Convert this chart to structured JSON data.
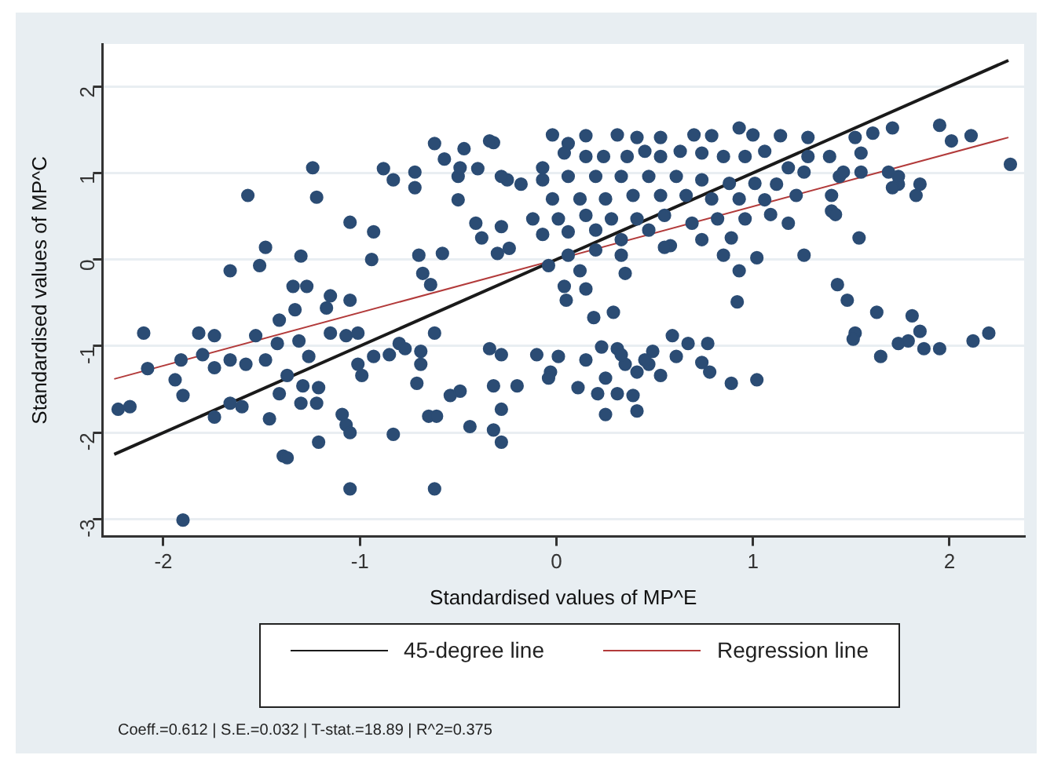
{
  "chart_data": {
    "type": "scatter",
    "xlabel": "Standardised values of MP^E",
    "ylabel": "Standardised values of MP^C",
    "xlim": [
      -2.31,
      2.38
    ],
    "ylim": [
      -3.2,
      2.49
    ],
    "xticks": [
      -2,
      -1,
      0,
      1,
      2
    ],
    "yticks": [
      -3,
      -2,
      -1,
      0,
      1,
      2
    ],
    "grid": "y",
    "legend": "bottom",
    "series": [
      {
        "marker": "circle",
        "color": "#2b4c74",
        "x": [
          -1.57,
          -1.24,
          -1.22,
          -1.66,
          -1.51,
          -1.48,
          -1.3,
          -1.34,
          -1.27,
          -1.15,
          -1.05,
          -1.05,
          -0.93,
          -0.94,
          -0.88,
          -0.83,
          -0.72,
          -0.72,
          -0.7,
          -0.68,
          -0.64,
          -0.62,
          -0.57,
          -0.5,
          -0.47,
          -0.49,
          -0.4,
          -0.5,
          -0.32,
          -0.25,
          -0.41,
          -0.38,
          -0.28,
          -0.3,
          -0.24,
          -0.58,
          -2.1,
          -2.08,
          -2.23,
          -2.17,
          -1.94,
          -1.9,
          -1.82,
          -1.74,
          -1.91,
          -1.8,
          -1.74,
          -1.66,
          -1.58,
          -1.53,
          -1.48,
          -1.42,
          -1.41,
          -1.33,
          -1.17,
          -1.31,
          -1.26,
          -1.37,
          -1.29,
          -1.21,
          -1.41,
          -1.3,
          -1.22,
          -1.46,
          -1.66,
          -1.74,
          -1.6,
          -1.15,
          -1.07,
          -1.01,
          -1.01,
          -0.99,
          -1.09,
          -1.07,
          -1.05,
          -1.21,
          -1.39,
          -1.37,
          -1.05,
          -0.83,
          -0.93,
          -0.85,
          -0.8,
          -0.77,
          -0.62,
          -0.69,
          -0.69,
          -0.71,
          -0.65,
          -0.61,
          -0.54,
          -0.49,
          -0.62,
          -0.44,
          -0.34,
          -0.28,
          -0.32,
          -0.28,
          -0.32,
          -0.28,
          -0.2,
          -1.9,
          -0.02,
          0.06,
          0.15,
          0.31,
          0.41,
          0.53,
          0.7,
          0.79,
          0.93,
          1.0,
          1.14,
          1.28,
          1.52,
          1.61,
          1.71,
          1.95,
          2.01,
          2.11,
          2.31,
          1.39,
          1.55,
          1.69,
          1.74,
          1.83,
          1.85,
          1.55,
          1.44,
          1.4,
          1.4,
          1.22,
          1.26,
          1.28,
          1.18,
          1.06,
          0.96,
          0.85,
          0.74,
          0.63,
          0.53,
          0.45,
          0.36,
          0.24,
          0.15,
          0.04,
          -0.07,
          -0.18,
          -0.28,
          -0.34,
          -0.07,
          0.06,
          0.2,
          0.33,
          0.47,
          0.61,
          0.74,
          0.88,
          1.01,
          1.12,
          -0.02,
          0.12,
          0.25,
          0.39,
          0.53,
          0.66,
          0.79,
          0.93,
          1.06,
          -0.12,
          0.01,
          0.15,
          0.28,
          0.41,
          0.55,
          0.69,
          0.82,
          0.96,
          1.09,
          1.18,
          -0.07,
          0.06,
          0.2,
          0.33,
          0.47,
          0.58,
          0.74,
          0.89,
          0.33,
          0.2,
          0.06,
          -0.04,
          0.12,
          0.35,
          0.55,
          0.85,
          0.93,
          1.02,
          1.26,
          1.54,
          1.42,
          1.74,
          1.71,
          1.46,
          0.04,
          0.15,
          0.92,
          1.43,
          1.48,
          0.05,
          0.19,
          0.29,
          1.63,
          1.81,
          1.52,
          1.51,
          1.65,
          1.74,
          1.79,
          1.85,
          1.87,
          1.95,
          2.12,
          2.2,
          -0.1,
          0.01,
          0.15,
          -0.03,
          -0.04,
          0.11,
          0.23,
          0.31,
          0.25,
          0.21,
          0.31,
          0.39,
          0.25,
          0.41,
          0.35,
          0.41,
          0.47,
          0.49,
          0.53,
          0.59,
          0.61,
          0.67,
          0.77,
          0.74,
          0.78,
          0.89,
          1.02,
          0.33,
          0.45
        ],
        "values": [
          0.74,
          1.06,
          0.72,
          -0.13,
          -0.07,
          0.14,
          0.04,
          -0.31,
          -0.31,
          -0.42,
          -0.47,
          0.43,
          0.32,
          0,
          1.05,
          0.92,
          1.01,
          0.83,
          0.05,
          -0.16,
          -0.29,
          1.34,
          1.16,
          0.96,
          1.28,
          1.06,
          1.05,
          0.69,
          1.35,
          0.92,
          0.42,
          0.25,
          0.38,
          0.07,
          0.13,
          0.07,
          -0.85,
          -1.26,
          -1.73,
          -1.7,
          -1.39,
          -1.57,
          -0.85,
          -0.88,
          -1.16,
          -1.1,
          -1.25,
          -1.16,
          -1.21,
          -0.88,
          -1.16,
          -0.97,
          -0.7,
          -0.58,
          -0.56,
          -0.94,
          -1.12,
          -1.34,
          -1.46,
          -1.48,
          -1.55,
          -1.66,
          -1.66,
          -1.84,
          -1.66,
          -1.82,
          -1.7,
          -0.85,
          -0.88,
          -0.85,
          -1.21,
          -1.34,
          -1.79,
          -1.91,
          -2.0,
          -2.11,
          -2.27,
          -2.29,
          -2.65,
          -2.02,
          -1.12,
          -1.1,
          -0.97,
          -1.03,
          -0.85,
          -1.06,
          -1.21,
          -1.43,
          -1.81,
          -1.81,
          -1.57,
          -1.52,
          -2.65,
          -1.93,
          -1.03,
          -1.1,
          -1.46,
          -1.73,
          -1.97,
          -2.11,
          -1.46,
          -3.01,
          1.44,
          1.34,
          1.43,
          1.44,
          1.41,
          1.41,
          1.44,
          1.43,
          1.52,
          1.44,
          1.43,
          1.41,
          1.41,
          1.46,
          1.52,
          1.55,
          1.37,
          1.43,
          1.1,
          1.19,
          1.23,
          1.01,
          0.87,
          0.74,
          0.87,
          1.01,
          0.96,
          0.74,
          0.56,
          0.74,
          1.01,
          1.19,
          1.06,
          1.25,
          1.19,
          1.19,
          1.23,
          1.25,
          1.19,
          1.25,
          1.19,
          1.19,
          1.19,
          1.23,
          1.06,
          0.87,
          0.96,
          1.37,
          0.92,
          0.96,
          0.96,
          0.96,
          0.96,
          0.96,
          0.92,
          0.88,
          0.88,
          0.87,
          0.7,
          0.7,
          0.7,
          0.74,
          0.74,
          0.74,
          0.7,
          0.7,
          0.69,
          0.47,
          0.47,
          0.51,
          0.47,
          0.47,
          0.51,
          0.42,
          0.47,
          0.47,
          0.52,
          0.42,
          0.29,
          0.32,
          0.34,
          0.23,
          0.34,
          0.16,
          0.23,
          0.25,
          0.05,
          0.11,
          0.05,
          -0.07,
          -0.13,
          -0.16,
          0.14,
          0.05,
          -0.13,
          0.02,
          0.05,
          0.25,
          0.52,
          0.96,
          0.83,
          1.01,
          -0.31,
          -0.34,
          -0.49,
          -0.29,
          -0.47,
          -0.47,
          -0.67,
          -0.61,
          -0.61,
          -0.65,
          -0.85,
          -0.92,
          -1.12,
          -0.97,
          -0.94,
          -0.83,
          -1.03,
          -1.03,
          -0.94,
          -0.85,
          -1.1,
          -1.12,
          -1.16,
          -1.3,
          -1.37,
          -1.48,
          -1.01,
          -1.03,
          -1.37,
          -1.55,
          -1.55,
          -1.57,
          -1.79,
          -1.75,
          -1.21,
          -1.3,
          -1.21,
          -1.06,
          -1.34,
          -0.88,
          -1.12,
          -0.97,
          -0.97,
          -1.19,
          -1.3,
          -1.43,
          -1.39,
          -1.1,
          -1.16
        ]
      },
      {
        "type": "line",
        "marker": "none",
        "name": "45-degree line",
        "color": "#1a1a1a",
        "x": [
          -2.25,
          2.3
        ],
        "values": [
          -2.25,
          2.3
        ]
      },
      {
        "type": "line",
        "marker": "none",
        "name": "Regression line",
        "color": "#b23a3a",
        "x": [
          -2.25,
          2.3
        ],
        "values": [
          -1.38,
          1.41
        ]
      }
    ],
    "annotations": [
      "Coeff.=0.612 | S.E.=0.032 | T-stat.=18.89 | R^2=0.375"
    ]
  }
}
